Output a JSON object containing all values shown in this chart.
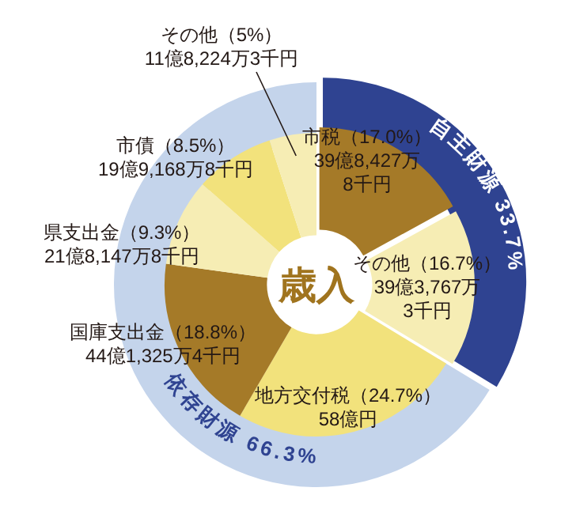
{
  "chart_data": [
    {
      "type": "donut",
      "title": "歳入",
      "categories": [
        "市税",
        "その他",
        "地方交付税",
        "国庫支出金",
        "県支出金",
        "市債",
        "その他"
      ],
      "values": [
        17.0,
        16.7,
        24.7,
        18.8,
        9.3,
        8.5,
        5
      ],
      "colors": [
        "#a57a28",
        "#f6edb4",
        "#f2e27c",
        "#a57a28",
        "#f6edb4",
        "#f2e27c",
        "#f6edb4"
      ],
      "value_labels": [
        "（17.0%）\n39億8,427万\n8千円",
        "（16.7%）\n39億3,767万\n3千円",
        "（24.7%）\n58億円",
        "（18.8%）\n44億1,325万4千円",
        "（9.3%）\n21億8,147万8千円",
        "（8.5%）\n19億9,168万8千円",
        "（5%）\n11億8,224万3千円"
      ]
    },
    {
      "type": "donut",
      "categories": [
        "自主財源",
        "依存財源"
      ],
      "values": [
        33.7,
        66.3
      ],
      "colors": [
        "#2f4391",
        "#c4d4eb"
      ],
      "value_labels": [
        "33.7%",
        "66.3%"
      ]
    }
  ]
}
